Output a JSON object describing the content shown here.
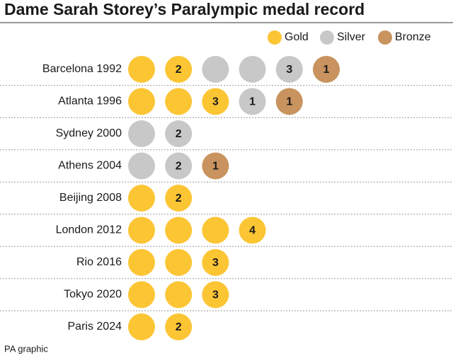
{
  "title": "Dame Sarah Storey’s Paralympic medal record",
  "legend": [
    {
      "name": "Gold",
      "color": "#fcc534"
    },
    {
      "name": "Silver",
      "color": "#c8c8c8"
    },
    {
      "name": "Bronze",
      "color": "#c8935e"
    }
  ],
  "rows": [
    {
      "label": "Barcelona 1992",
      "medals": [
        {
          "color": "#fcc534"
        },
        {
          "color": "#fcc534",
          "label": "2"
        },
        {
          "color": "#c8c8c8"
        },
        {
          "color": "#c8c8c8"
        },
        {
          "color": "#c8c8c8",
          "label": "3"
        },
        {
          "color": "#c8935e",
          "label": "1"
        }
      ]
    },
    {
      "label": "Atlanta 1996",
      "medals": [
        {
          "color": "#fcc534"
        },
        {
          "color": "#fcc534"
        },
        {
          "color": "#fcc534",
          "label": "3"
        },
        {
          "color": "#c8c8c8",
          "label": "1"
        },
        {
          "color": "#c8935e",
          "label": "1"
        }
      ]
    },
    {
      "label": "Sydney 2000",
      "medals": [
        {
          "color": "#c8c8c8"
        },
        {
          "color": "#c8c8c8",
          "label": "2"
        }
      ]
    },
    {
      "label": "Athens 2004",
      "medals": [
        {
          "color": "#c8c8c8"
        },
        {
          "color": "#c8c8c8",
          "label": "2"
        },
        {
          "color": "#c8935e",
          "label": "1"
        }
      ]
    },
    {
      "label": "Beijing 2008",
      "medals": [
        {
          "color": "#fcc534"
        },
        {
          "color": "#fcc534",
          "label": "2"
        }
      ]
    },
    {
      "label": "London 2012",
      "medals": [
        {
          "color": "#fcc534"
        },
        {
          "color": "#fcc534"
        },
        {
          "color": "#fcc534"
        },
        {
          "color": "#fcc534",
          "label": "4"
        }
      ]
    },
    {
      "label": "Rio 2016",
      "medals": [
        {
          "color": "#fcc534"
        },
        {
          "color": "#fcc534"
        },
        {
          "color": "#fcc534",
          "label": "3"
        }
      ]
    },
    {
      "label": "Tokyo 2020",
      "medals": [
        {
          "color": "#fcc534"
        },
        {
          "color": "#fcc534"
        },
        {
          "color": "#fcc534",
          "label": "3"
        }
      ]
    },
    {
      "label": "Paris 2024",
      "medals": [
        {
          "color": "#fcc534"
        },
        {
          "color": "#fcc534",
          "label": "2"
        }
      ]
    }
  ],
  "footer": "PA graphic"
}
